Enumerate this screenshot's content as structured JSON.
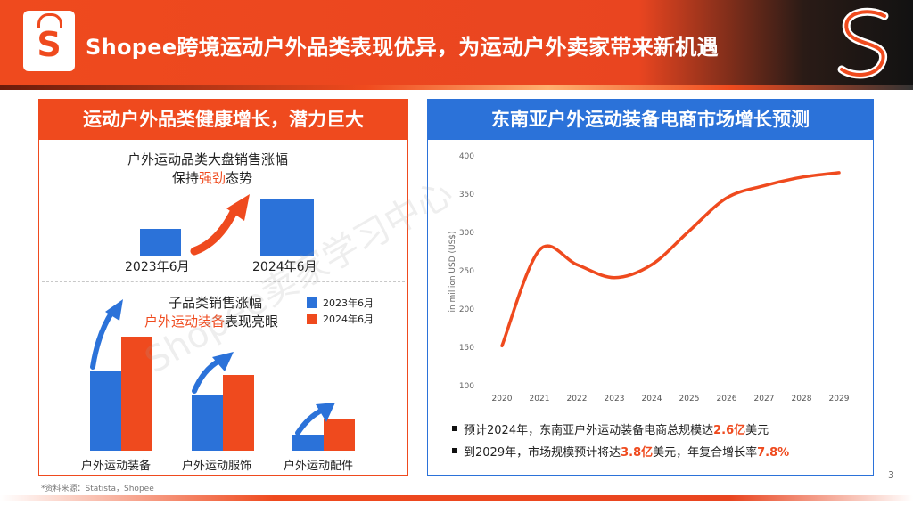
{
  "header": {
    "title": "Shopee跨境运动户外品类表现优异，为运动户外卖家带来新机遇",
    "logo_letter": "S"
  },
  "left_panel": {
    "title": "运动户外品类健康增长，潜力巨大",
    "top_section": {
      "line1": "户外运动品类大盘销售涨幅",
      "line2_prefix": "保持",
      "line2_highlight": "强劲",
      "line2_suffix": "态势",
      "bars": [
        {
          "label": "2023年6月",
          "value": 30
        },
        {
          "label": "2024年6月",
          "value": 63
        }
      ]
    },
    "bottom_section": {
      "line1": "子品类销售涨幅",
      "line2_highlight": "户外运动装备",
      "line2_suffix": "表现亮眼",
      "legend": [
        {
          "label": "2023年6月",
          "color": "#2b72d9"
        },
        {
          "label": "2024年6月",
          "color": "#ef4a1e"
        }
      ],
      "groups": [
        {
          "label": "户外运动装备",
          "v2023": 90,
          "v2024": 128
        },
        {
          "label": "户外运动服饰",
          "v2023": 63,
          "v2024": 85
        },
        {
          "label": "户外运动配件",
          "v2023": 18,
          "v2024": 35
        }
      ]
    }
  },
  "right_panel": {
    "title": "东南亚户外运动装备电商市场增长预测",
    "watermark_text": "",
    "bullets": [
      {
        "prefix": "预计2024年，东南亚户外运动装备电商总规模达",
        "highlight": "2.6亿",
        "suffix": "美元"
      },
      {
        "prefix": "到2029年，市场规模预计将达",
        "highlight": "3.8亿",
        "suffix": "美元，年复合增长率",
        "highlight2": "7.8%"
      }
    ]
  },
  "chart_data": {
    "type": "line",
    "ylabel": "in million USD (US$)",
    "xlabel": "",
    "ylim": [
      100,
      400
    ],
    "yticks": [
      "100",
      "150",
      "200",
      "250",
      "300",
      "350",
      "400"
    ],
    "categories": [
      "2020",
      "2021",
      "2022",
      "2023",
      "2024",
      "2025",
      "2026",
      "2027",
      "2028",
      "2029"
    ],
    "series": [
      {
        "values": [
          152,
          277,
          258,
          241,
          258,
          302,
          345,
          361,
          372,
          378
        ],
        "color": "#ef4a1e"
      }
    ],
    "grid": false,
    "legend": "none"
  },
  "footer": {
    "source": "*资料来源：Statista，Shopee",
    "page_number": "3",
    "watermark": "Shopee卖家学习中心"
  },
  "colors": {
    "brand_orange": "#ef4a1e",
    "brand_blue": "#2b72d9"
  }
}
